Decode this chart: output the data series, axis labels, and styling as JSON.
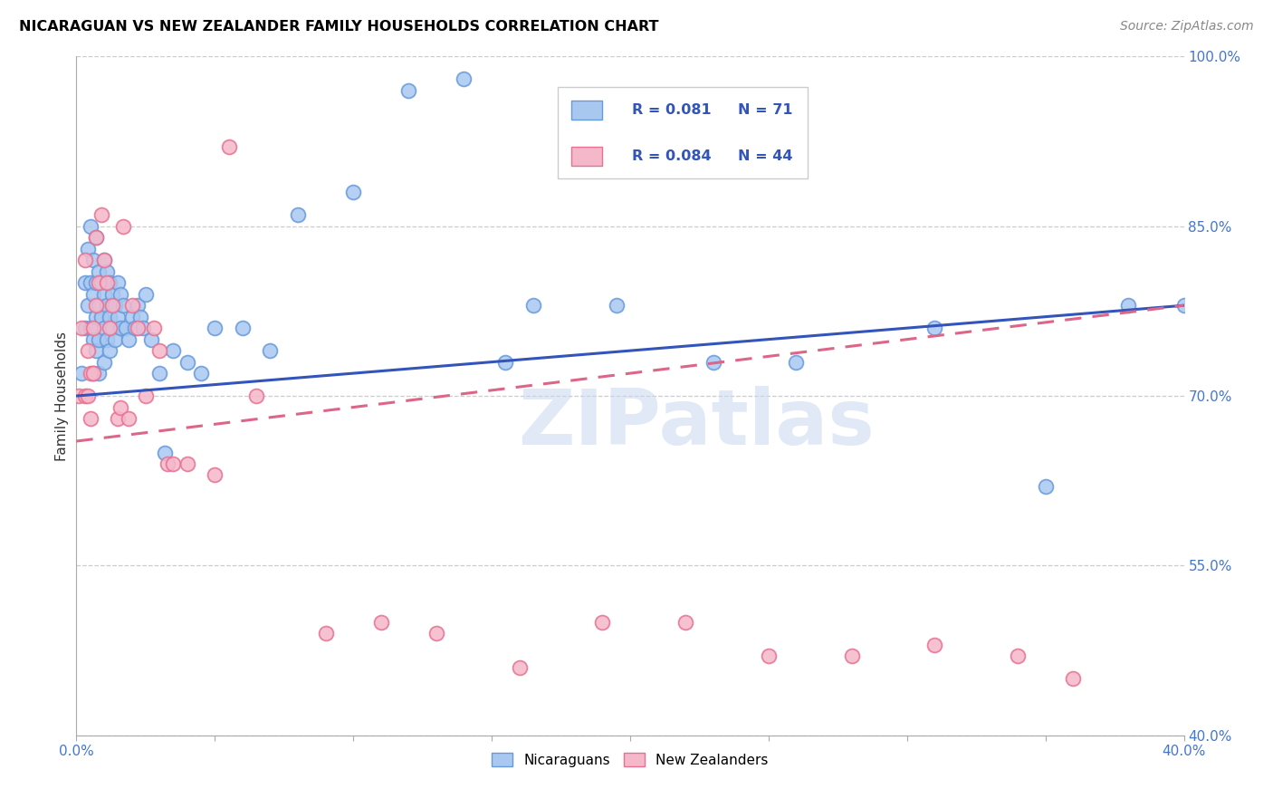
{
  "title": "NICARAGUAN VS NEW ZEALANDER FAMILY HOUSEHOLDS CORRELATION CHART",
  "source": "Source: ZipAtlas.com",
  "ylabel": "Family Households",
  "blue_color": "#A8C8F0",
  "pink_color": "#F5B8CB",
  "blue_edge_color": "#6699DD",
  "pink_edge_color": "#E87090",
  "blue_line_color": "#3355BB",
  "pink_line_color": "#DD6688",
  "watermark": "ZIPatlas",
  "legend_r_blue": "R = 0.081",
  "legend_n_blue": "N = 71",
  "legend_r_pink": "R = 0.084",
  "legend_n_pink": "N = 44",
  "label_color": "#4477CC",
  "blue_x": [
    0.002,
    0.003,
    0.003,
    0.004,
    0.004,
    0.005,
    0.005,
    0.005,
    0.006,
    0.006,
    0.006,
    0.006,
    0.007,
    0.007,
    0.007,
    0.007,
    0.008,
    0.008,
    0.008,
    0.008,
    0.009,
    0.009,
    0.01,
    0.01,
    0.01,
    0.01,
    0.011,
    0.011,
    0.011,
    0.012,
    0.012,
    0.012,
    0.013,
    0.013,
    0.014,
    0.014,
    0.015,
    0.015,
    0.016,
    0.016,
    0.017,
    0.018,
    0.019,
    0.02,
    0.021,
    0.022,
    0.023,
    0.024,
    0.025,
    0.027,
    0.03,
    0.032,
    0.035,
    0.04,
    0.045,
    0.05,
    0.06,
    0.07,
    0.08,
    0.1,
    0.12,
    0.14,
    0.155,
    0.165,
    0.195,
    0.23,
    0.26,
    0.31,
    0.35,
    0.38,
    0.4
  ],
  "blue_y": [
    0.72,
    0.8,
    0.76,
    0.83,
    0.78,
    0.85,
    0.8,
    0.76,
    0.82,
    0.79,
    0.75,
    0.72,
    0.84,
    0.8,
    0.77,
    0.74,
    0.81,
    0.78,
    0.75,
    0.72,
    0.8,
    0.77,
    0.82,
    0.79,
    0.76,
    0.73,
    0.81,
    0.78,
    0.75,
    0.8,
    0.77,
    0.74,
    0.79,
    0.76,
    0.78,
    0.75,
    0.8,
    0.77,
    0.79,
    0.76,
    0.78,
    0.76,
    0.75,
    0.77,
    0.76,
    0.78,
    0.77,
    0.76,
    0.79,
    0.75,
    0.72,
    0.65,
    0.74,
    0.73,
    0.72,
    0.76,
    0.76,
    0.74,
    0.86,
    0.88,
    0.97,
    0.98,
    0.73,
    0.78,
    0.78,
    0.73,
    0.73,
    0.76,
    0.62,
    0.78,
    0.78
  ],
  "pink_x": [
    0.001,
    0.002,
    0.003,
    0.003,
    0.004,
    0.004,
    0.005,
    0.005,
    0.006,
    0.006,
    0.007,
    0.007,
    0.008,
    0.009,
    0.01,
    0.011,
    0.012,
    0.013,
    0.015,
    0.016,
    0.017,
    0.019,
    0.02,
    0.022,
    0.025,
    0.028,
    0.03,
    0.033,
    0.035,
    0.04,
    0.05,
    0.055,
    0.065,
    0.09,
    0.11,
    0.13,
    0.16,
    0.19,
    0.22,
    0.25,
    0.28,
    0.31,
    0.34,
    0.36
  ],
  "pink_y": [
    0.7,
    0.76,
    0.7,
    0.82,
    0.74,
    0.7,
    0.72,
    0.68,
    0.76,
    0.72,
    0.84,
    0.78,
    0.8,
    0.86,
    0.82,
    0.8,
    0.76,
    0.78,
    0.68,
    0.69,
    0.85,
    0.68,
    0.78,
    0.76,
    0.7,
    0.76,
    0.74,
    0.64,
    0.64,
    0.64,
    0.63,
    0.92,
    0.7,
    0.49,
    0.5,
    0.49,
    0.46,
    0.5,
    0.5,
    0.47,
    0.47,
    0.48,
    0.47,
    0.45
  ],
  "blue_intercept": 0.7,
  "blue_slope": 0.2,
  "pink_intercept": 0.66,
  "pink_slope": 0.3
}
